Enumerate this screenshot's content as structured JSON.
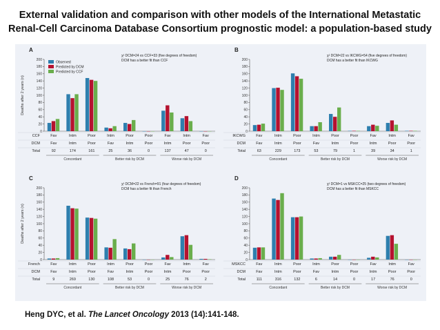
{
  "title_line1": "External validation and comparison with other models of the International  Metastatic",
  "title_line2": "Renal-Cell Carcinoma Database Consortium prognostic model: a population-based  study",
  "citation": {
    "authors": "Heng DYC, et al.",
    "journal": "The Lancet Oncology",
    "details": "2013 (14):141-148."
  },
  "colors": {
    "observed": "#2e7fae",
    "dcm": "#b5122f",
    "other": "#6aae4c"
  },
  "chart_data": [
    {
      "panel": "A",
      "type": "bar",
      "ylabel": "Deaths after 2 years (n)",
      "ylim": [
        0,
        200
      ],
      "yticks": [
        0,
        20,
        40,
        60,
        80,
        100,
        120,
        140,
        160,
        180,
        200
      ],
      "legend": [
        "Observed",
        "Predicted by DCM",
        "Predicted by CCF"
      ],
      "annotation1": "χ² DCM=24 vs CCF=33 (five degrees of freedom)",
      "annotation2": "DCM has a better fit than CCF",
      "row_labels": [
        "CCF",
        "DCM",
        "Total"
      ],
      "cats_other": [
        "Fav",
        "Intm",
        "Poor",
        "Intm",
        "Poor",
        "Poor",
        "Fav",
        "Intm",
        "Fav"
      ],
      "cats_dcm": [
        "Fav",
        "Intm",
        "Poor",
        "Fav",
        "Intm",
        "Poor",
        "Intm",
        "Poor",
        "Poor"
      ],
      "totals": [
        "92",
        "174",
        "161",
        "25",
        "36",
        "0",
        "137",
        "47",
        "0"
      ],
      "groups": [
        {
          "label": "Concordant",
          "start": 0,
          "end": 2
        },
        {
          "label": "Better risk by DCM",
          "start": 3,
          "end": 5
        },
        {
          "label": "Worse risk by DCM",
          "start": 6,
          "end": 8
        }
      ],
      "series": [
        {
          "name": "Observed",
          "values": [
            23,
            103,
            148,
            10,
            23,
            0,
            57,
            36,
            0
          ]
        },
        {
          "name": "Predicted by DCM",
          "values": [
            28,
            92,
            143,
            8,
            20,
            0,
            72,
            42,
            0
          ]
        },
        {
          "name": "Predicted by CCF",
          "values": [
            34,
            103,
            140,
            14,
            31,
            0,
            52,
            28,
            0
          ]
        }
      ]
    },
    {
      "panel": "B",
      "type": "bar",
      "ylabel": "",
      "ylim": [
        0,
        200
      ],
      "yticks": [
        0,
        20,
        40,
        60,
        80,
        100,
        120,
        140,
        160,
        180,
        200
      ],
      "annotation1": "χ² DCM=22 vs IKCWG=54 (five degrees of freedom)",
      "annotation2": "DCM has a better fit than IKCWG",
      "row_labels": [
        "IKCWG",
        "DCM",
        "Total"
      ],
      "cats_other": [
        "Fav",
        "Intm",
        "Poor",
        "Intm",
        "Poor",
        "Poor",
        "Fav",
        "Intm",
        "Fav"
      ],
      "cats_dcm": [
        "Fav",
        "Intm",
        "Poor",
        "Fav",
        "Intm",
        "Poor",
        "Intm",
        "Poor",
        "Poor"
      ],
      "totals": [
        "63",
        "229",
        "173",
        "53",
        "79",
        "1",
        "39",
        "34",
        "1"
      ],
      "groups": [
        {
          "label": "Concordant",
          "start": 0,
          "end": 2
        },
        {
          "label": "Better risk by DCM",
          "start": 3,
          "end": 5
        },
        {
          "label": "Worse risk by DCM",
          "start": 6,
          "end": 8
        }
      ],
      "series": [
        {
          "name": "Observed",
          "values": [
            17,
            120,
            161,
            14,
            48,
            1,
            14,
            23,
            1
          ]
        },
        {
          "name": "Predicted by DCM",
          "values": [
            18,
            121,
            153,
            14,
            40,
            1,
            18,
            30,
            1
          ]
        },
        {
          "name": "Predicted by IKCWG",
          "values": [
            21,
            115,
            146,
            25,
            66,
            1,
            15,
            18,
            1
          ]
        }
      ]
    },
    {
      "panel": "C",
      "type": "bar",
      "ylabel": "Deaths after 2 years (n)",
      "ylim": [
        0,
        200
      ],
      "yticks": [
        0,
        20,
        40,
        60,
        80,
        100,
        120,
        140,
        160,
        180,
        200
      ],
      "annotation1": "χ² DCM=22 vs French=91 (four degrees of freedom)",
      "annotation2": "DCM has a better fit than French",
      "row_labels": [
        "French",
        "DCM",
        "Total"
      ],
      "cats_other": [
        "Fav",
        "Intm",
        "Poor",
        "Intm",
        "Poor",
        "Poor",
        "Fav",
        "Intm",
        "Fav"
      ],
      "cats_dcm": [
        "Fav",
        "Intm",
        "Poor",
        "Fav",
        "Intm",
        "Poor",
        "Intm",
        "Poor",
        "Poor"
      ],
      "totals": [
        "9",
        "269",
        "130",
        "108",
        "53",
        "0",
        "25",
        "76",
        "2"
      ],
      "groups": [
        {
          "label": "Concordant",
          "start": 0,
          "end": 2
        },
        {
          "label": "Better risk by DCM",
          "start": 3,
          "end": 5
        },
        {
          "label": "Worse risk by DCM",
          "start": 6,
          "end": 8
        }
      ],
      "series": [
        {
          "name": "Observed",
          "values": [
            3,
            150,
            117,
            34,
            31,
            0,
            6,
            65,
            2
          ]
        },
        {
          "name": "Predicted by DCM",
          "values": [
            3,
            143,
            116,
            33,
            29,
            0,
            13,
            68,
            2
          ]
        },
        {
          "name": "Predicted by French",
          "values": [
            4,
            142,
            114,
            57,
            45,
            0,
            7,
            41,
            1
          ]
        }
      ]
    },
    {
      "panel": "D",
      "type": "bar",
      "ylabel": "",
      "ylim": [
        0,
        200
      ],
      "yticks": [
        0,
        20,
        40,
        60,
        80,
        100,
        120,
        140,
        160,
        180,
        200
      ],
      "annotation1": "χ² DCM=1 vs MSKCC=25 (two degrees of freedom)",
      "annotation2": "DCM has a better fit than MSKCC",
      "row_labels": [
        "MSKCC",
        "DCM",
        "Total"
      ],
      "cats_other": [
        "Fav",
        "Intm",
        "Poor",
        "Intm",
        "Poor",
        "Poor",
        "Fav",
        "Intm",
        "Fav"
      ],
      "cats_dcm": [
        "Fav",
        "Intm",
        "Poor",
        "Fav",
        "Intm",
        "Poor",
        "Intm",
        "Poor",
        "Poor"
      ],
      "totals": [
        "111",
        "316",
        "132",
        "6",
        "14",
        "0",
        "17",
        "76",
        "0"
      ],
      "groups": [
        {
          "label": "Concordant",
          "start": 0,
          "end": 2
        },
        {
          "label": "Better risk by DCM",
          "start": 3,
          "end": 5
        },
        {
          "label": "Worse risk by DCM",
          "start": 6,
          "end": 8
        }
      ],
      "series": [
        {
          "name": "Observed",
          "values": [
            33,
            170,
            118,
            3,
            8,
            0,
            5,
            66,
            0
          ]
        },
        {
          "name": "Predicted by DCM",
          "values": [
            34,
            166,
            118,
            3,
            8,
            0,
            8,
            68,
            0
          ]
        },
        {
          "name": "Predicted by MSKCC",
          "values": [
            34,
            185,
            120,
            4,
            13,
            0,
            6,
            44,
            0
          ]
        }
      ]
    }
  ]
}
